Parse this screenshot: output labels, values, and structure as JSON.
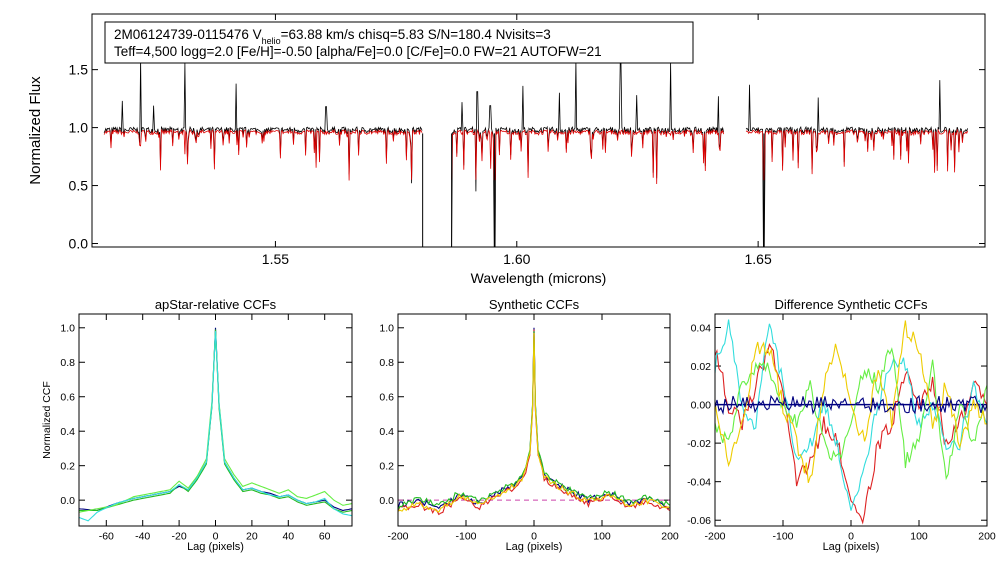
{
  "spectrum_panel": {
    "info_line1_prefix": "2M06124739-0115476  V",
    "info_line1_sub": "helio",
    "info_line1_suffix": "=63.88 km/s  chisq=5.83  S/N=180.4  Nvisits=3",
    "info_line2": "Teff=4,500 logg=2.0 [Fe/H]=-0.50 [alpha/Fe]=0.0 [C/Fe]=0.0 FW=21 AUTOFW=21"
  },
  "colors": {
    "observed": "#000000",
    "model": "#dd0000",
    "ccf_navy": "#000080",
    "ccf_green": "#22bb22",
    "ccf_lightgreen": "#66ee44",
    "ccf_cyan": "#33dddd",
    "ccf_red": "#dd2222",
    "ccf_yellow": "#eecc00"
  },
  "chart_data": [
    {
      "type": "line",
      "id": "spectrum",
      "title": "",
      "xlabel": "Wavelength (microns)",
      "ylabel": "Normalized Flux",
      "xlim": [
        1.512,
        1.697
      ],
      "ylim": [
        -0.03,
        1.98
      ],
      "xticks": [
        1.55,
        1.6,
        1.65
      ],
      "xtick_labels": [
        "1.55",
        "1.60",
        "1.65"
      ],
      "yticks": [
        0.0,
        0.5,
        1.0,
        1.5
      ],
      "ytick_labels": [
        "0.0",
        "0.5",
        "1.0",
        "1.5"
      ],
      "chips": [
        [
          1.5145,
          1.5805
        ],
        [
          1.5865,
          1.643
        ],
        [
          1.6475,
          1.6935
        ]
      ],
      "series": [
        {
          "name": "observed",
          "continuum": 0.98,
          "emission_spikes": [
            [
              1.5183,
              1.23
            ],
            [
              1.5221,
              1.6
            ],
            [
              1.5248,
              1.19
            ],
            [
              1.5312,
              1.56
            ],
            [
              1.5418,
              1.38
            ],
            [
              1.5605,
              1.18
            ],
            [
              1.5886,
              1.22
            ],
            [
              1.5918,
              1.31
            ],
            [
              1.5945,
              1.19
            ],
            [
              1.6012,
              1.36
            ],
            [
              1.6088,
              1.3
            ],
            [
              1.6123,
              1.58
            ],
            [
              1.6215,
              1.55
            ],
            [
              1.6248,
              1.28
            ],
            [
              1.6318,
              1.57
            ],
            [
              1.6418,
              1.27
            ],
            [
              1.6482,
              1.37
            ],
            [
              1.6625,
              1.26
            ],
            [
              1.6876,
              1.41
            ]
          ],
          "deep_lines": [
            [
              1.5805,
              -0.03
            ],
            [
              1.5865,
              -0.03
            ],
            [
              1.5782,
              0.52
            ],
            [
              1.5915,
              0.45
            ],
            [
              1.5954,
              -0.03
            ],
            [
              1.6512,
              -0.03
            ]
          ]
        },
        {
          "name": "model",
          "continuum": 0.96
        }
      ]
    },
    {
      "type": "line",
      "id": "apstar_ccfs",
      "title": "apStar-relative CCFs",
      "xlabel": "Lag (pixels)",
      "ylabel": "Normalized CCF",
      "xlim": [
        -75,
        75
      ],
      "ylim": [
        -0.15,
        1.08
      ],
      "xticks": [
        -60,
        -40,
        -20,
        0,
        20,
        40,
        60
      ],
      "xtick_labels": [
        "-60",
        "-40",
        "-20",
        "0",
        "20",
        "40",
        "60"
      ],
      "yticks": [
        0.0,
        0.2,
        0.4,
        0.6,
        0.8,
        1.0
      ],
      "ytick_labels": [
        "0.0",
        "0.2",
        "0.4",
        "0.6",
        "0.8",
        "1.0"
      ],
      "series": [
        {
          "name": "navy",
          "color_key": "ccf_navy",
          "x": [
            -75,
            -65,
            -55,
            -45,
            -35,
            -25,
            -20,
            -15,
            -10,
            -5,
            -2,
            0,
            2,
            5,
            10,
            15,
            20,
            25,
            30,
            35,
            40,
            45,
            50,
            55,
            60,
            65,
            70,
            75
          ],
          "y": [
            -0.05,
            -0.06,
            -0.02,
            0.01,
            0.03,
            0.05,
            0.08,
            0.06,
            0.13,
            0.22,
            0.55,
            1.0,
            0.55,
            0.22,
            0.13,
            0.06,
            0.07,
            0.05,
            0.04,
            0.02,
            0.03,
            0.0,
            -0.02,
            -0.01,
            0.0,
            -0.04,
            -0.06,
            -0.05
          ]
        },
        {
          "name": "green",
          "color_key": "ccf_green",
          "x": [
            -75,
            -65,
            -55,
            -45,
            -35,
            -25,
            -20,
            -15,
            -10,
            -5,
            -2,
            0,
            2,
            5,
            10,
            15,
            20,
            25,
            30,
            35,
            40,
            45,
            50,
            55,
            60,
            65,
            70,
            75
          ],
          "y": [
            -0.06,
            -0.06,
            -0.03,
            0.0,
            0.02,
            0.04,
            0.09,
            0.05,
            0.12,
            0.21,
            0.54,
            0.99,
            0.53,
            0.21,
            0.12,
            0.05,
            0.06,
            0.04,
            0.03,
            0.01,
            0.02,
            -0.01,
            -0.03,
            -0.02,
            -0.01,
            -0.05,
            -0.07,
            -0.06
          ]
        },
        {
          "name": "lightgreen",
          "color_key": "ccf_lightgreen",
          "x": [
            -75,
            -65,
            -55,
            -45,
            -35,
            -25,
            -20,
            -15,
            -10,
            -5,
            -2,
            0,
            2,
            5,
            10,
            15,
            20,
            25,
            30,
            35,
            40,
            45,
            50,
            55,
            60,
            65,
            70,
            75
          ],
          "y": [
            -0.07,
            -0.05,
            -0.03,
            0.02,
            0.04,
            0.06,
            0.11,
            0.07,
            0.14,
            0.24,
            0.57,
            0.98,
            0.56,
            0.24,
            0.15,
            0.08,
            0.1,
            0.08,
            0.06,
            0.04,
            0.06,
            0.02,
            0.01,
            0.03,
            0.05,
            0.0,
            -0.03,
            -0.02
          ]
        },
        {
          "name": "cyan",
          "color_key": "ccf_cyan",
          "x": [
            -75,
            -70,
            -65,
            -55,
            -45,
            -35,
            -25,
            -20,
            -15,
            -10,
            -5,
            -2,
            0,
            2,
            5,
            10,
            15,
            20,
            25,
            30,
            35,
            40,
            45,
            50,
            55,
            60,
            65,
            70,
            75
          ],
          "y": [
            -0.1,
            -0.12,
            -0.07,
            -0.02,
            0.01,
            0.03,
            0.05,
            0.09,
            0.06,
            0.13,
            0.22,
            0.55,
            0.98,
            0.55,
            0.22,
            0.13,
            0.06,
            0.07,
            0.05,
            0.03,
            0.02,
            0.03,
            0.0,
            -0.02,
            -0.01,
            0.01,
            -0.05,
            -0.08,
            -0.09
          ]
        }
      ]
    },
    {
      "type": "line",
      "id": "synthetic_ccfs",
      "title": "Synthetic CCFs",
      "xlabel": "Lag (pixels)",
      "ylabel": "",
      "xlim": [
        -200,
        200
      ],
      "ylim": [
        -0.15,
        1.08
      ],
      "xticks": [
        -200,
        -100,
        0,
        100,
        200
      ],
      "xtick_labels": [
        "-200",
        "-100",
        "0",
        "100",
        "200"
      ],
      "yticks": [
        0.0,
        0.2,
        0.4,
        0.6,
        0.8,
        1.0
      ],
      "ytick_labels": [
        "0.0",
        "0.2",
        "0.4",
        "0.6",
        "0.8",
        "1.0"
      ],
      "zero_line": "dashed",
      "series": [
        {
          "name": "navy",
          "color_key": "ccf_navy",
          "x": [
            -200,
            -170,
            -140,
            -110,
            -80,
            -50,
            -30,
            -15,
            -6,
            -2,
            0,
            2,
            6,
            15,
            30,
            50,
            80,
            110,
            140,
            170,
            200
          ],
          "y": [
            -0.03,
            0.0,
            -0.05,
            0.03,
            -0.02,
            0.05,
            0.09,
            0.15,
            0.28,
            0.55,
            1.0,
            0.55,
            0.28,
            0.15,
            0.1,
            0.06,
            0.0,
            0.04,
            -0.02,
            0.01,
            -0.04
          ]
        },
        {
          "name": "red",
          "color_key": "ccf_red",
          "x": [
            -200,
            -170,
            -140,
            -110,
            -80,
            -50,
            -30,
            -15,
            -6,
            -2,
            0,
            2,
            6,
            15,
            30,
            50,
            80,
            110,
            140,
            170,
            200
          ],
          "y": [
            -0.05,
            -0.03,
            -0.07,
            0.01,
            -0.04,
            0.03,
            0.07,
            0.13,
            0.26,
            0.52,
            0.99,
            0.52,
            0.26,
            0.13,
            0.08,
            0.04,
            -0.02,
            0.02,
            -0.04,
            -0.01,
            -0.06
          ]
        },
        {
          "name": "green",
          "color_key": "ccf_green",
          "x": [
            -200,
            -170,
            -140,
            -110,
            -80,
            -50,
            -30,
            -15,
            -6,
            -2,
            0,
            2,
            6,
            15,
            30,
            50,
            80,
            110,
            140,
            170,
            200
          ],
          "y": [
            -0.04,
            0.01,
            -0.03,
            0.04,
            -0.01,
            0.06,
            0.1,
            0.16,
            0.29,
            0.56,
            0.98,
            0.56,
            0.29,
            0.16,
            0.11,
            0.07,
            0.01,
            0.05,
            -0.01,
            0.02,
            -0.03
          ]
        },
        {
          "name": "yellow",
          "color_key": "ccf_yellow",
          "x": [
            -200,
            -170,
            -140,
            -110,
            -80,
            -50,
            -30,
            -15,
            -6,
            -2,
            0,
            2,
            6,
            15,
            30,
            50,
            80,
            110,
            140,
            170,
            200
          ],
          "y": [
            -0.06,
            -0.02,
            -0.06,
            0.02,
            -0.03,
            0.04,
            0.08,
            0.14,
            0.27,
            0.53,
            0.97,
            0.53,
            0.27,
            0.14,
            0.09,
            0.05,
            -0.01,
            0.03,
            -0.03,
            0.0,
            -0.05
          ]
        }
      ]
    },
    {
      "type": "line",
      "id": "difference_ccfs",
      "title": "Difference Synthetic CCFs",
      "xlabel": "Lag (pixels)",
      "ylabel": "",
      "xlim": [
        -200,
        200
      ],
      "ylim": [
        -0.063,
        0.047
      ],
      "xticks": [
        -200,
        -100,
        0,
        100,
        200
      ],
      "xtick_labels": [
        "-200",
        "-100",
        "0",
        "100",
        "200"
      ],
      "yticks": [
        -0.06,
        -0.04,
        -0.02,
        0.0,
        0.02,
        0.04
      ],
      "ytick_labels": [
        "-0.06",
        "-0.04",
        "-0.02",
        "0.00",
        "0.02",
        "0.04"
      ],
      "zero_line": "solid",
      "series": [
        {
          "name": "red",
          "color_key": "ccf_red",
          "x": [
            -200,
            -180,
            -160,
            -140,
            -120,
            -100,
            -80,
            -60,
            -40,
            -20,
            0,
            20,
            40,
            60,
            80,
            100,
            120,
            140,
            160,
            180,
            200
          ],
          "y": [
            0.03,
            0.0,
            -0.01,
            0.01,
            0.03,
            0.01,
            -0.04,
            -0.03,
            -0.01,
            -0.02,
            -0.05,
            -0.058,
            -0.02,
            -0.01,
            0.02,
            0.0,
            0.01,
            -0.02,
            -0.01,
            0.01,
            0.0
          ]
        },
        {
          "name": "cyan",
          "color_key": "ccf_cyan",
          "x": [
            -200,
            -180,
            -160,
            -140,
            -120,
            -100,
            -80,
            -60,
            -40,
            -20,
            0,
            20,
            40,
            60,
            80,
            100,
            120,
            140,
            160,
            180,
            200
          ],
          "y": [
            0.02,
            0.04,
            0.0,
            -0.01,
            0.043,
            0.01,
            -0.03,
            -0.02,
            0.0,
            -0.02,
            -0.055,
            -0.03,
            0.0,
            0.02,
            0.02,
            -0.01,
            0.0,
            -0.02,
            -0.02,
            0.01,
            -0.01
          ]
        },
        {
          "name": "lightgreen",
          "color_key": "ccf_lightgreen",
          "x": [
            -200,
            -180,
            -160,
            -140,
            -120,
            -100,
            -80,
            -60,
            -40,
            -20,
            0,
            20,
            40,
            60,
            80,
            100,
            120,
            140,
            160,
            180,
            200
          ],
          "y": [
            -0.01,
            -0.02,
            0.01,
            0.02,
            0.02,
            0.0,
            -0.01,
            0.01,
            -0.02,
            -0.03,
            -0.01,
            0.02,
            0.01,
            0.03,
            -0.03,
            -0.02,
            0.02,
            -0.04,
            0.0,
            -0.02,
            0.01
          ]
        },
        {
          "name": "yellow",
          "color_key": "ccf_yellow",
          "x": [
            -200,
            -180,
            -160,
            -140,
            -120,
            -100,
            -80,
            -60,
            -40,
            -20,
            0,
            20,
            40,
            60,
            80,
            100,
            120,
            140,
            160,
            180,
            200
          ],
          "y": [
            0.0,
            -0.03,
            -0.01,
            0.03,
            0.03,
            0.0,
            -0.02,
            -0.04,
            0.01,
            0.03,
            0.0,
            -0.02,
            0.02,
            -0.01,
            0.04,
            0.03,
            -0.01,
            0.01,
            -0.02,
            0.0,
            -0.01
          ]
        },
        {
          "name": "navy",
          "color_key": "ccf_navy",
          "x": [
            -200,
            200
          ],
          "y": [
            0.0,
            0.0
          ]
        }
      ]
    }
  ]
}
